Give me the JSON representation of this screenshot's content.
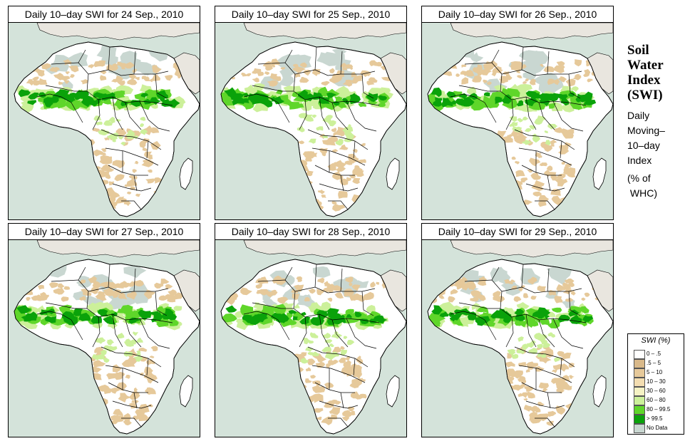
{
  "panels": [
    {
      "title": "Daily 10–day SWI for  24 Sep., 2010",
      "variant": 0
    },
    {
      "title": "Daily 10–day SWI for  25 Sep., 2010",
      "variant": 1
    },
    {
      "title": "Daily 10–day SWI for  26 Sep., 2010",
      "variant": 2
    },
    {
      "title": "Daily 10–day SWI for  27 Sep., 2010",
      "variant": 3
    },
    {
      "title": "Daily 10–day SWI for  28 Sep., 2010",
      "variant": 4
    },
    {
      "title": "Daily 10–day SWI for  29 Sep., 2010",
      "variant": 5
    }
  ],
  "side": {
    "title_lines": [
      "Soil",
      "Water",
      "Index",
      "(SWI)"
    ],
    "subtitle_lines": [
      "Daily",
      "Moving–",
      "10–day",
      "Index"
    ],
    "unit_lines": [
      "(% of",
      " WHC)"
    ]
  },
  "legend": {
    "title": "SWI (%)",
    "items": [
      {
        "label": "0 – .5",
        "color": "#ffffff"
      },
      {
        "label": ".5 – 5",
        "color": "#d9b98a"
      },
      {
        "label": "5 – 10",
        "color": "#e6c99a"
      },
      {
        "label": "10 – 30",
        "color": "#f3ddb1"
      },
      {
        "label": "30 – 60",
        "color": "#f5f2c4"
      },
      {
        "label": "60 – 80",
        "color": "#ccf09a"
      },
      {
        "label": "80 – 99.5",
        "color": "#5fd62a"
      },
      {
        "label": "> 99.5",
        "color": "#0aa20a"
      },
      {
        "label": "No Data",
        "color": "#c9d7d1"
      }
    ]
  },
  "colors": {
    "ocean": "#d4e3da",
    "land": "#ffffff",
    "outside_land": "#e9e6df",
    "desert": "#c9d7d1",
    "dry": "#e6c99a",
    "moist": "#ccf09a",
    "wet": "#5fd62a",
    "saturated": "#0aa20a"
  }
}
